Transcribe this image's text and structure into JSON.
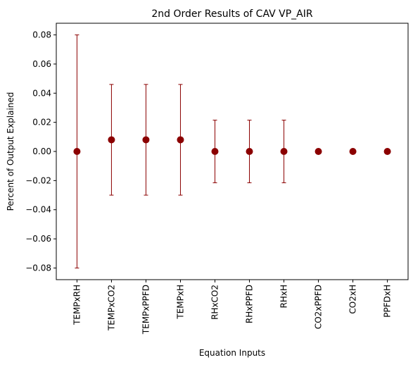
{
  "chart_data": {
    "type": "scatter",
    "title": "2nd Order Results of CAV VP_AIR",
    "xlabel": "Equation Inputs",
    "ylabel": "Percent of Output Explained",
    "categories": [
      "TEMPxRH",
      "TEMPxCO2",
      "TEMPxPPFD",
      "TEMPxH",
      "RHxCO2",
      "RHxPPFD",
      "RHxH",
      "CO2xPPFD",
      "CO2xH",
      "PPFDxH"
    ],
    "values": [
      0.0,
      0.008,
      0.008,
      0.008,
      0.0,
      0.0,
      0.0,
      0.0,
      0.0,
      0.0
    ],
    "errors": [
      0.08,
      0.038,
      0.038,
      0.038,
      0.0215,
      0.0215,
      0.0215,
      0.0,
      0.0,
      0.0
    ],
    "ylim": [
      -0.088,
      0.088
    ],
    "yticks": [
      -0.08,
      -0.06,
      -0.04,
      -0.02,
      0.0,
      0.02,
      0.04,
      0.06,
      0.08
    ],
    "ytick_labels": [
      "−0.08",
      "−0.06",
      "−0.04",
      "−0.02",
      "0.00",
      "0.02",
      "0.04",
      "0.06",
      "0.08"
    ],
    "grid": false,
    "legend": false,
    "marker_color": "#8b0000",
    "error_color": "#8b0000"
  }
}
